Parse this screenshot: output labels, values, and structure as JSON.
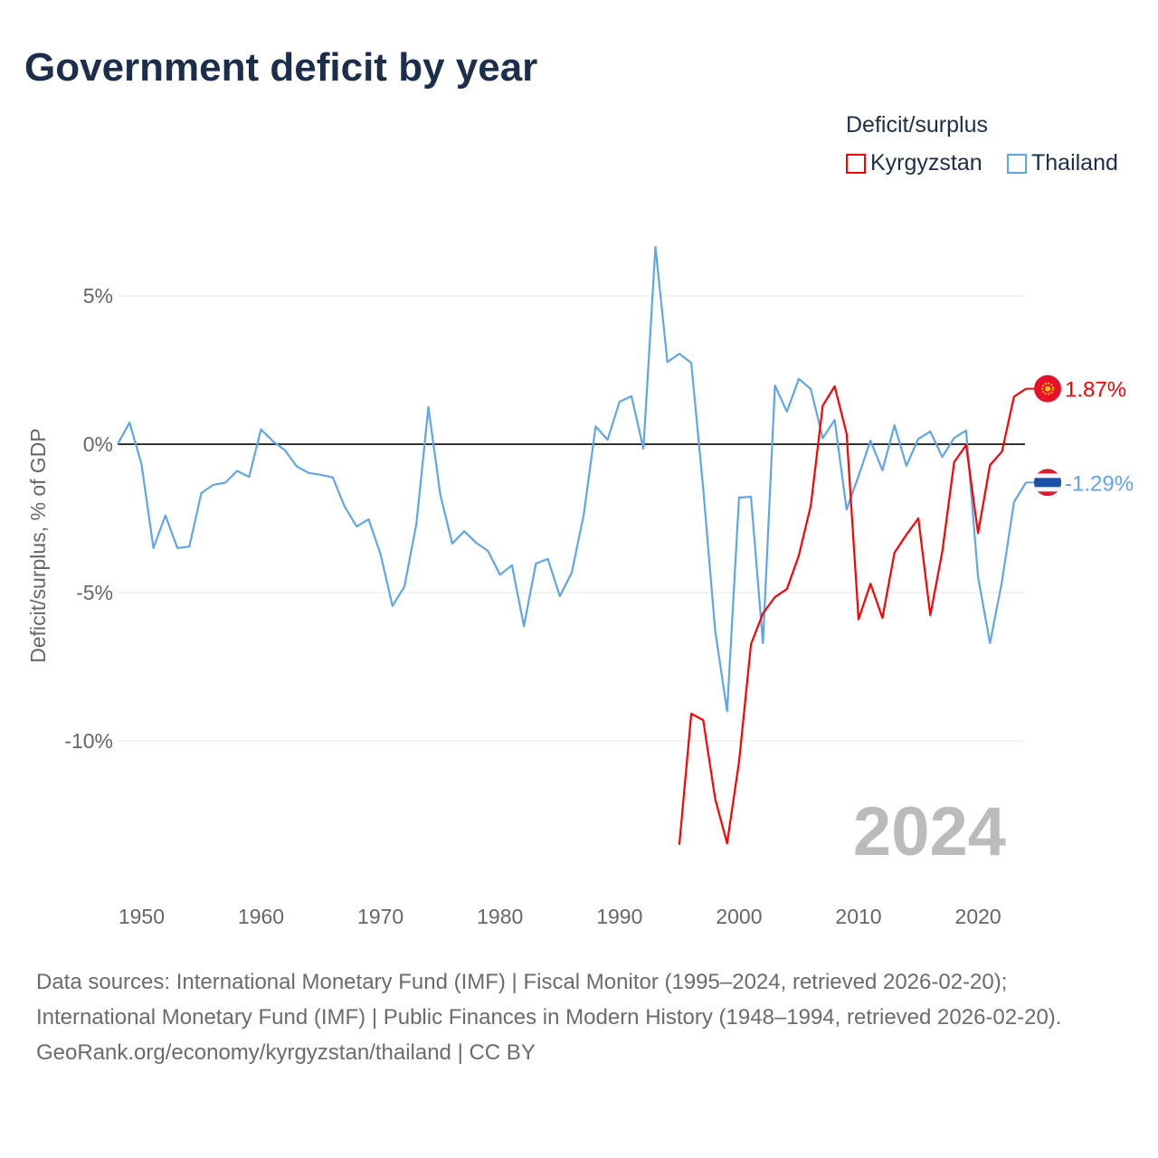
{
  "chart_data": {
    "type": "line",
    "title": "Government deficit by year",
    "ylabel": "Deficit/surplus, % of GDP",
    "xlabel": "",
    "xlim": [
      1948,
      2024
    ],
    "ylim": [
      -14,
      7
    ],
    "x_ticks": [
      1950,
      1960,
      1970,
      1980,
      1990,
      2000,
      2010,
      2020
    ],
    "y_ticks": [
      {
        "v": 5,
        "label": "5%"
      },
      {
        "v": 0,
        "label": "0%"
      },
      {
        "v": -5,
        "label": "-5%"
      },
      {
        "v": -10,
        "label": "-10%"
      }
    ],
    "legend_title": "Deficit/surplus",
    "legend_position": "top-right",
    "year_label": "2024",
    "series": [
      {
        "name": "Kyrgyzstan",
        "color": "#ff0000",
        "end_label": "1.87%",
        "flag": "kyrgyzstan-flag",
        "x": [
          1995,
          1996,
          1997,
          1998,
          1999,
          2000,
          2001,
          2002,
          2003,
          2004,
          2005,
          2006,
          2007,
          2008,
          2009,
          2010,
          2011,
          2012,
          2013,
          2014,
          2015,
          2016,
          2017,
          2018,
          2019,
          2020,
          2021,
          2022,
          2023,
          2024
        ],
        "values": [
          -13.5,
          -9.08,
          -9.3,
          -11.95,
          -13.45,
          -10.7,
          -6.74,
          -5.7,
          -5.15,
          -4.88,
          -3.75,
          -2.07,
          1.3,
          1.95,
          0.35,
          -5.9,
          -4.7,
          -5.85,
          -3.66,
          -3.05,
          -2.5,
          -5.76,
          -3.63,
          -0.6,
          -0.03,
          -3.0,
          -0.7,
          -0.25,
          1.6,
          1.87
        ]
      },
      {
        "name": "Thailand",
        "color": "#5ea6ea",
        "end_label": "-1.29%",
        "flag": "thailand-flag",
        "x": [
          1948,
          1949,
          1950,
          1951,
          1952,
          1953,
          1954,
          1955,
          1956,
          1957,
          1958,
          1959,
          1960,
          1961,
          1962,
          1963,
          1964,
          1965,
          1966,
          1967,
          1968,
          1969,
          1970,
          1971,
          1972,
          1973,
          1974,
          1975,
          1976,
          1977,
          1978,
          1979,
          1980,
          1981,
          1982,
          1983,
          1984,
          1985,
          1986,
          1987,
          1988,
          1989,
          1990,
          1991,
          1992,
          1993,
          1994,
          1995,
          1996,
          1997,
          1998,
          1999,
          2000,
          2001,
          2002,
          2003,
          2004,
          2005,
          2006,
          2007,
          2008,
          2009,
          2010,
          2011,
          2012,
          2013,
          2014,
          2015,
          2016,
          2017,
          2018,
          2019,
          2020,
          2021,
          2022,
          2023,
          2024
        ],
        "values": [
          0,
          0.73,
          -0.67,
          -3.5,
          -2.4,
          -3.5,
          -3.45,
          -1.65,
          -1.37,
          -1.3,
          -0.9,
          -1.1,
          0.5,
          0.1,
          -0.2,
          -0.75,
          -0.97,
          -1.03,
          -1.12,
          -2.1,
          -2.77,
          -2.53,
          -3.7,
          -5.45,
          -4.8,
          -2.68,
          1.25,
          -1.7,
          -3.35,
          -2.93,
          -3.32,
          -3.6,
          -4.4,
          -4.08,
          -6.13,
          -4.02,
          -3.87,
          -5.12,
          -4.33,
          -2.38,
          0.6,
          0.15,
          1.43,
          1.62,
          -0.15,
          6.65,
          2.77,
          3.05,
          2.74,
          -1.5,
          -6.28,
          -9.0,
          -1.8,
          -1.77,
          -6.7,
          1.98,
          1.1,
          2.2,
          1.86,
          0.2,
          0.82,
          -2.2,
          -1.07,
          0.12,
          -0.88,
          0.64,
          -0.73,
          0.18,
          0.43,
          -0.43,
          0.21,
          0.46,
          -4.48,
          -6.7,
          -4.63,
          -1.95,
          -1.29
        ]
      }
    ]
  },
  "footer": {
    "sources": "Data sources: International Monetary Fund (IMF) | Fiscal Monitor (1995–2024, retrieved 2026-02-20); International Monetary Fund (IMF) | Public Finances in Modern History (1948–1994, retrieved 2026-02-20).",
    "credit": "GeoRank.org/economy/kyrgyzstan/thailand | CC BY"
  }
}
